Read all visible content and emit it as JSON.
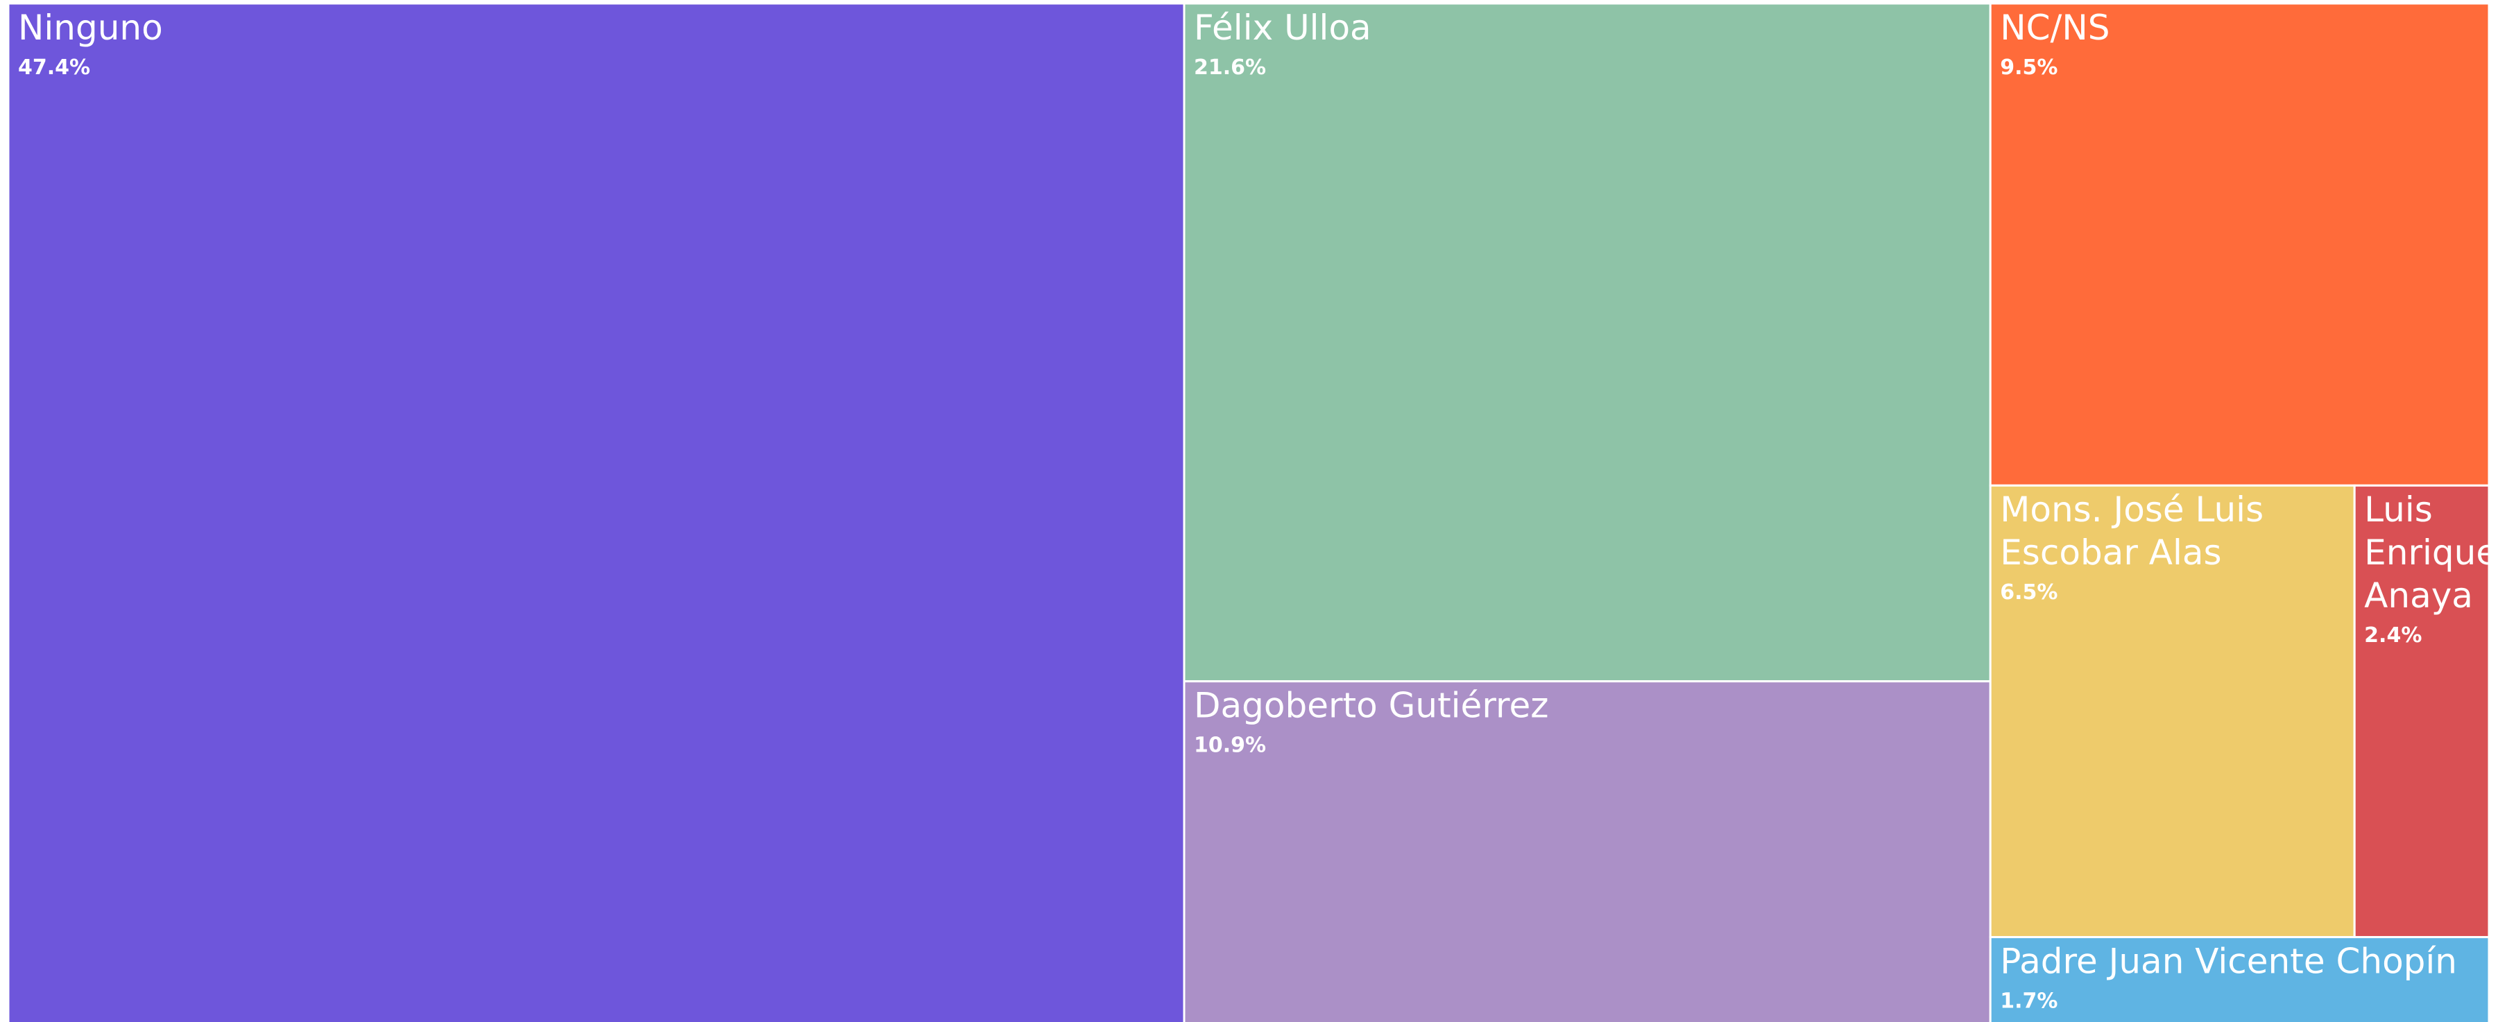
{
  "chart_data": {
    "type": "treemap",
    "categories": [
      "Ninguno",
      "Félix Ulloa",
      "Dagoberto Gutiérrez",
      "NC/NS",
      "Mons. José Luis Escobar Alas",
      "Luis Enrique Anaya",
      "Padre Juan Vicente Chopín"
    ],
    "values": [
      47.4,
      21.6,
      10.9,
      9.5,
      6.5,
      2.4,
      1.7
    ],
    "value_labels": [
      "47.4%",
      "21.6%",
      "10.9%",
      "9.5%",
      "6.5%",
      "2.4%",
      "1.7%"
    ],
    "colors": [
      "#6e56db",
      "#8ec3a7",
      "#ab90c7",
      "#ff6b3a",
      "#eecb6b",
      "#d95054",
      "#5fb4e3"
    ]
  }
}
